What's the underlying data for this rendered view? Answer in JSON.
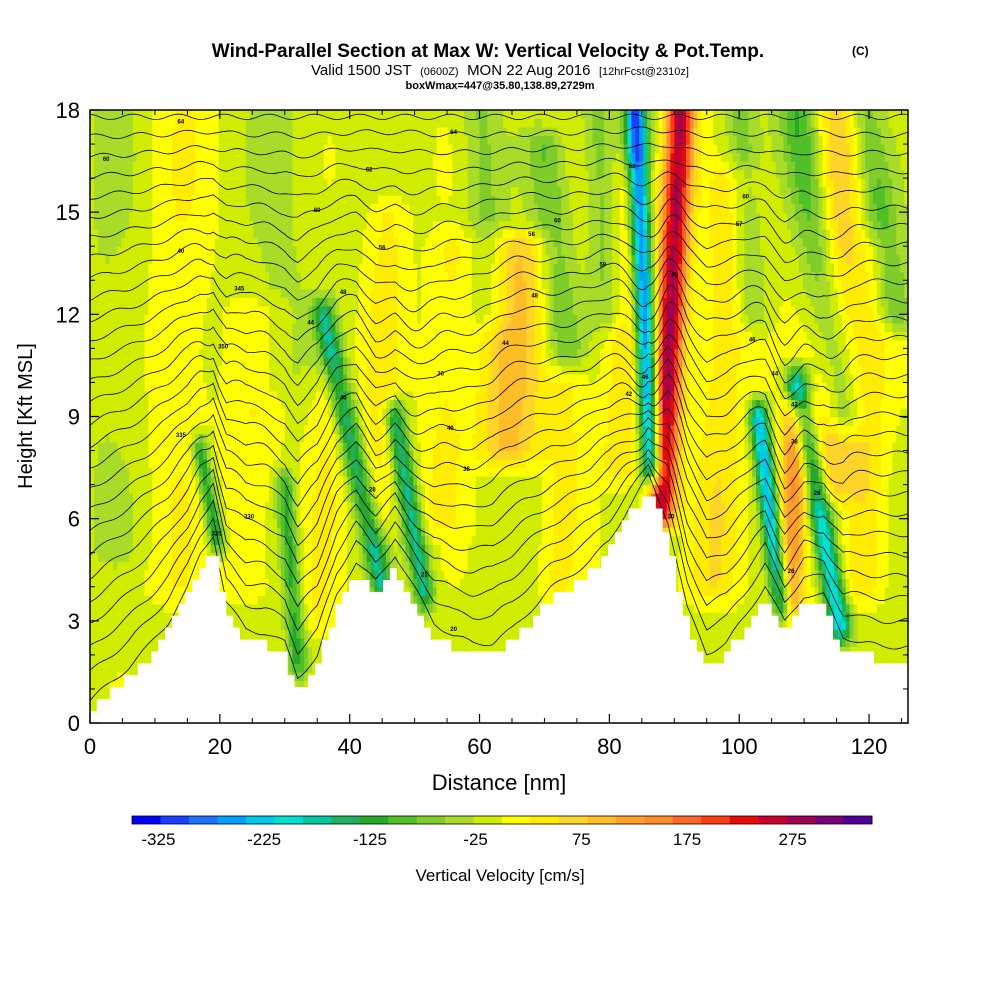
{
  "header": {
    "title": "Wind-Parallel Section at Max W: Vertical Velocity & Pot.Temp.",
    "title_mark": "(C)",
    "subtitle_valid": "Valid 1500 JST",
    "subtitle_utc": "(0600Z)",
    "subtitle_date": "MON 22 Aug 2016",
    "subtitle_fcst": "[12hrFcst@2310z]",
    "box_info": "boxWmax=447@35.80,138.89,2729m"
  },
  "chart_data": {
    "type": "heatmap",
    "title": "Wind-Parallel Section at Max W: Vertical Velocity & Pot.Temp.",
    "xlabel": "Distance [nm]",
    "ylabel": "Height [Kft MSL]",
    "xlim": [
      0,
      126
    ],
    "ylim": [
      0,
      18
    ],
    "x_ticks": [
      0,
      20,
      40,
      60,
      80,
      100,
      120
    ],
    "y_ticks": [
      0,
      3,
      6,
      9,
      12,
      15,
      18
    ],
    "colorbar": {
      "label": "Vertical Velocity [cm/s]",
      "tick_values": [
        -325,
        -225,
        -125,
        -25,
        75,
        175,
        275
      ],
      "tick_labels": [
        "-325",
        "-225",
        "-125",
        "-25",
        "75",
        "175",
        "275"
      ],
      "min": -350,
      "max": 350,
      "colors": [
        "#0000ff",
        "#1a40ff",
        "#2070ff",
        "#00a0ff",
        "#00c8e8",
        "#00e0d0",
        "#00c8a0",
        "#20b060",
        "#28a828",
        "#50c028",
        "#80cc28",
        "#a8dc28",
        "#d0ec00",
        "#ffff00",
        "#ffec00",
        "#ffd428",
        "#ffbe28",
        "#ffa028",
        "#ff8c28",
        "#ff6428",
        "#ff3c14",
        "#e60a0a",
        "#c8002d",
        "#a00050",
        "#780078",
        "#500096"
      ]
    },
    "terrain": {
      "x": [
        0,
        3,
        6,
        9,
        12,
        15,
        17,
        19,
        21,
        24,
        27,
        30,
        32,
        35,
        38,
        41,
        44,
        47,
        50,
        53,
        56,
        59,
        62,
        65,
        68,
        71,
        74,
        77,
        80,
        83,
        86,
        89,
        92,
        95,
        98,
        101,
        104,
        107,
        110,
        113,
        116,
        119,
        122,
        126
      ],
      "height": [
        0.3,
        0.8,
        1.3,
        1.9,
        2.6,
        3.6,
        4.6,
        5.2,
        3.2,
        2.4,
        2.3,
        2.0,
        1.0,
        1.6,
        3.4,
        4.4,
        3.8,
        4.6,
        3.6,
        2.6,
        2.2,
        2.0,
        2.0,
        2.4,
        3.0,
        3.6,
        4.0,
        4.4,
        5.0,
        6.0,
        6.9,
        5.6,
        3.0,
        1.7,
        2.0,
        2.8,
        3.7,
        2.6,
        3.4,
        3.4,
        2.2,
        2.0,
        1.9,
        1.9
      ]
    },
    "updraft_bands": [
      {
        "x_top": 91.0,
        "x_bottom": 88.0,
        "y_top": 18,
        "y_bottom": 6.2,
        "w": 280,
        "width": 2.2
      },
      {
        "x_top": 66.0,
        "x_bottom": 64.5,
        "y_top": 14.0,
        "y_bottom": 8.0,
        "w": 95,
        "width": 5.0
      },
      {
        "x_top": 109.0,
        "x_bottom": 107.5,
        "y_top": 9.0,
        "y_bottom": 3.4,
        "w": 150,
        "width": 2.5
      },
      {
        "x_top": 116.0,
        "x_bottom": 114.0,
        "y_top": 18,
        "y_bottom": 7.0,
        "w": 85,
        "width": 4.0
      },
      {
        "x_top": 99.0,
        "x_bottom": 96.0,
        "y_top": 16.0,
        "y_bottom": 4.0,
        "w": 55,
        "width": 4.0
      },
      {
        "x_top": 84.0,
        "x_bottom": 82.0,
        "y_top": 16.0,
        "y_bottom": 7.5,
        "w": 60,
        "width": 3.5
      },
      {
        "x_top": 46.0,
        "x_bottom": 44.0,
        "y_top": 15.0,
        "y_bottom": 6.0,
        "w": 45,
        "width": 3.0
      },
      {
        "x_top": 56.0,
        "x_bottom": 54.0,
        "y_top": 14.0,
        "y_bottom": 6.0,
        "w": 40,
        "width": 3.5
      },
      {
        "x_top": 26.0,
        "x_bottom": 24.0,
        "y_top": 12.0,
        "y_bottom": 4.0,
        "w": 30,
        "width": 4.0
      },
      {
        "x_top": 14.0,
        "x_bottom": 13.0,
        "y_top": 18,
        "y_bottom": 4.0,
        "w": 30,
        "width": 5.0
      },
      {
        "x_top": 74.0,
        "x_bottom": 72.0,
        "y_top": 10.0,
        "y_bottom": 4.0,
        "w": 40,
        "width": 3.0
      },
      {
        "x_top": 37.0,
        "x_bottom": 35.0,
        "y_top": 10.0,
        "y_bottom": 3.0,
        "w": 35,
        "width": 3.0
      },
      {
        "x_top": 121.0,
        "x_bottom": 119.0,
        "y_top": 14.0,
        "y_bottom": 4.0,
        "w": 50,
        "width": 3.0
      }
    ],
    "downdraft_bands": [
      {
        "x_top": 84.0,
        "x_bottom": 86.5,
        "y_top": 18,
        "y_bottom": 7.5,
        "w": -300,
        "width": 1.6
      },
      {
        "x_top": 103.0,
        "x_bottom": 106.5,
        "y_top": 9.0,
        "y_bottom": 3.4,
        "w": -230,
        "width": 1.5
      },
      {
        "x_top": 109.0,
        "x_bottom": 115.5,
        "y_top": 10.0,
        "y_bottom": 2.8,
        "w": -210,
        "width": 1.8
      },
      {
        "x_top": 36.0,
        "x_bottom": 45.0,
        "y_top": 12.0,
        "y_bottom": 4.0,
        "w": -150,
        "width": 1.8
      },
      {
        "x_top": 47.0,
        "x_bottom": 51.5,
        "y_top": 9.0,
        "y_bottom": 3.8,
        "w": -160,
        "width": 1.6
      },
      {
        "x_top": 17.0,
        "x_bottom": 19.5,
        "y_top": 8.0,
        "y_bottom": 5.4,
        "w": -130,
        "width": 1.3
      },
      {
        "x_top": 30.0,
        "x_bottom": 32.0,
        "y_top": 7.0,
        "y_bottom": 1.8,
        "w": -110,
        "width": 1.5
      },
      {
        "x_top": 109.0,
        "x_bottom": 116.0,
        "y_top": 18,
        "y_bottom": 9.0,
        "w": -100,
        "width": 3.0
      },
      {
        "x_top": 119.0,
        "x_bottom": 124.0,
        "y_top": 18,
        "y_bottom": 12.0,
        "w": -90,
        "width": 3.0
      },
      {
        "x_top": 70.0,
        "x_bottom": 73.0,
        "y_top": 17.0,
        "y_bottom": 11.0,
        "w": -70,
        "width": 3.0
      },
      {
        "x_top": 60.0,
        "x_bottom": 62.0,
        "y_top": 18,
        "y_bottom": 12.0,
        "w": -50,
        "width": 3.0
      },
      {
        "x_top": 78.0,
        "x_bottom": 80.0,
        "y_top": 18,
        "y_bottom": 12.0,
        "w": -60,
        "width": 2.5
      },
      {
        "x_top": 100.0,
        "x_bottom": 102.0,
        "y_top": 18,
        "y_bottom": 12.0,
        "w": -60,
        "width": 2.5
      },
      {
        "x_top": 3.0,
        "x_bottom": 3.0,
        "y_top": 18,
        "y_bottom": 5.0,
        "w": -20,
        "width": 6.0
      },
      {
        "x_top": 29.0,
        "x_bottom": 29.0,
        "y_top": 18,
        "y_bottom": 10.0,
        "w": -25,
        "width": 5.0
      }
    ],
    "theta_contours": {
      "count": 28,
      "top_height": 17.8,
      "bottom_offset": 0.35,
      "displacements": [
        {
          "x": 86.0,
          "amp": 1.6,
          "width": 3.5
        },
        {
          "x": 107.0,
          "amp": 1.0,
          "width": 3.0
        },
        {
          "x": 113.0,
          "amp": 1.1,
          "width": 3.5
        },
        {
          "x": 45.0,
          "amp": 0.9,
          "width": 4.0
        },
        {
          "x": 50.0,
          "amp": 0.8,
          "width": 3.0
        },
        {
          "x": 19.0,
          "amp": 0.6,
          "width": 2.5
        },
        {
          "x": 31.0,
          "amp": 0.4,
          "width": 3.0
        },
        {
          "x": 65.0,
          "amp": -0.6,
          "width": 5.0
        },
        {
          "x": 89.5,
          "amp": -0.7,
          "width": 2.5
        }
      ],
      "labels": [
        {
          "x": 2.5,
          "y": 16.5,
          "text": "60"
        },
        {
          "x": 14.0,
          "y": 17.6,
          "text": "64"
        },
        {
          "x": 14.0,
          "y": 13.8,
          "text": "40"
        },
        {
          "x": 14.0,
          "y": 8.4,
          "text": "335"
        },
        {
          "x": 24.5,
          "y": 6.0,
          "text": "330"
        },
        {
          "x": 19.5,
          "y": 5.5,
          "text": "325"
        },
        {
          "x": 20.5,
          "y": 11.0,
          "text": "350"
        },
        {
          "x": 23.0,
          "y": 12.7,
          "text": "345"
        },
        {
          "x": 35.0,
          "y": 15.0,
          "text": "60"
        },
        {
          "x": 34.0,
          "y": 11.7,
          "text": "44"
        },
        {
          "x": 39.0,
          "y": 9.5,
          "text": "40"
        },
        {
          "x": 39.0,
          "y": 12.6,
          "text": "48"
        },
        {
          "x": 43.0,
          "y": 16.2,
          "text": "62"
        },
        {
          "x": 45.0,
          "y": 13.9,
          "text": "56"
        },
        {
          "x": 43.5,
          "y": 6.8,
          "text": "28"
        },
        {
          "x": 51.5,
          "y": 4.3,
          "text": "21"
        },
        {
          "x": 56.0,
          "y": 17.3,
          "text": "64"
        },
        {
          "x": 54.0,
          "y": 10.2,
          "text": "36"
        },
        {
          "x": 55.5,
          "y": 8.6,
          "text": "40"
        },
        {
          "x": 58.0,
          "y": 7.4,
          "text": "38"
        },
        {
          "x": 56.0,
          "y": 2.7,
          "text": "20"
        },
        {
          "x": 64.0,
          "y": 11.1,
          "text": "44"
        },
        {
          "x": 68.5,
          "y": 12.5,
          "text": "48"
        },
        {
          "x": 68.0,
          "y": 14.3,
          "text": "58"
        },
        {
          "x": 72.0,
          "y": 14.7,
          "text": "60"
        },
        {
          "x": 79.0,
          "y": 13.4,
          "text": "59"
        },
        {
          "x": 83.5,
          "y": 16.3,
          "text": "62"
        },
        {
          "x": 83.0,
          "y": 9.6,
          "text": "42"
        },
        {
          "x": 85.5,
          "y": 10.1,
          "text": "46"
        },
        {
          "x": 90.0,
          "y": 13.1,
          "text": "45"
        },
        {
          "x": 89.5,
          "y": 6.0,
          "text": "30"
        },
        {
          "x": 101.0,
          "y": 15.4,
          "text": "60"
        },
        {
          "x": 100.0,
          "y": 14.6,
          "text": "57"
        },
        {
          "x": 102.0,
          "y": 11.2,
          "text": "46"
        },
        {
          "x": 105.5,
          "y": 10.2,
          "text": "44"
        },
        {
          "x": 108.5,
          "y": 9.3,
          "text": "42"
        },
        {
          "x": 108.5,
          "y": 8.2,
          "text": "38"
        },
        {
          "x": 112.0,
          "y": 6.7,
          "text": "28"
        },
        {
          "x": 108.0,
          "y": 4.4,
          "text": "26"
        }
      ]
    }
  }
}
